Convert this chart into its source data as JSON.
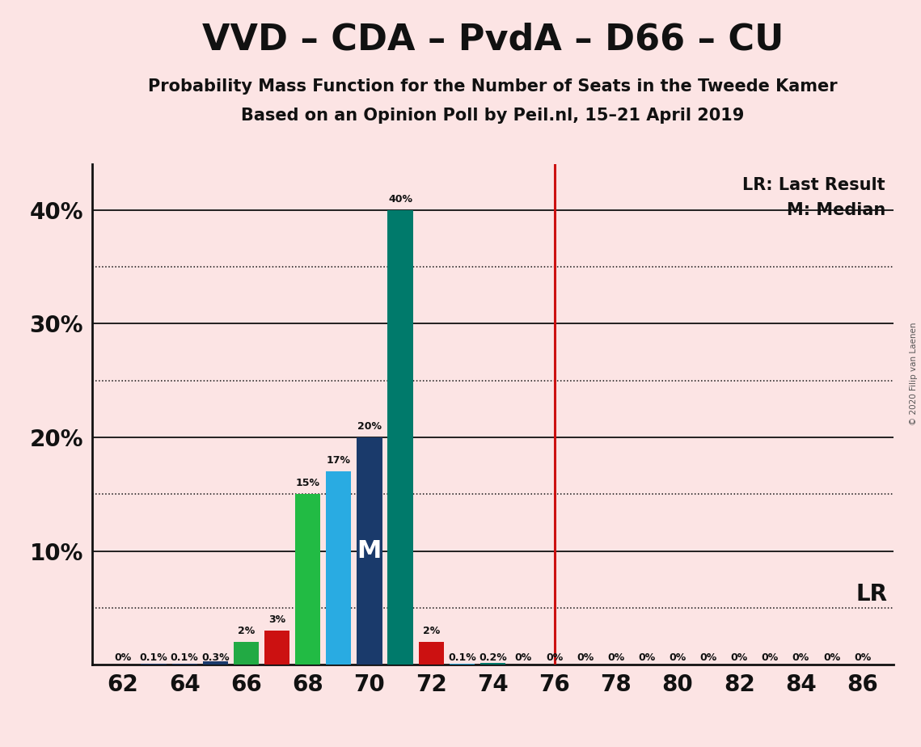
{
  "title": "VVD – CDA – PvdA – D66 – CU",
  "subtitle1": "Probability Mass Function for the Number of Seats in the Tweede Kamer",
  "subtitle2": "Based on an Opinion Poll by Peil.nl, 15–21 April 2019",
  "copyright": "© 2020 Filip van Laenen",
  "fig_bg": "#fce4e4",
  "bar_data": [
    {
      "seat": 62,
      "prob": 0.0,
      "color": "#1a3a6b",
      "label": "0%"
    },
    {
      "seat": 63,
      "prob": 0.1,
      "color": "#1a3a6b",
      "label": "0.1%"
    },
    {
      "seat": 64,
      "prob": 0.1,
      "color": "#1a3a6b",
      "label": "0.1%"
    },
    {
      "seat": 65,
      "prob": 0.3,
      "color": "#1a3a6b",
      "label": "0.3%"
    },
    {
      "seat": 66,
      "prob": 2.0,
      "color": "#22aa44",
      "label": "2%"
    },
    {
      "seat": 67,
      "prob": 3.0,
      "color": "#cc1111",
      "label": "3%"
    },
    {
      "seat": 68,
      "prob": 15.0,
      "color": "#22bb44",
      "label": "15%"
    },
    {
      "seat": 69,
      "prob": 17.0,
      "color": "#29abe2",
      "label": "17%"
    },
    {
      "seat": 70,
      "prob": 20.0,
      "color": "#1a3a6b",
      "label": "20%"
    },
    {
      "seat": 71,
      "prob": 40.0,
      "color": "#007a6b",
      "label": "40%"
    },
    {
      "seat": 72,
      "prob": 2.0,
      "color": "#cc1111",
      "label": "2%"
    },
    {
      "seat": 73,
      "prob": 0.1,
      "color": "#29abe2",
      "label": "0.1%"
    },
    {
      "seat": 74,
      "prob": 0.2,
      "color": "#007a6b",
      "label": "0.2%"
    },
    {
      "seat": 75,
      "prob": 0.0,
      "color": "#1a3a6b",
      "label": "0%"
    },
    {
      "seat": 76,
      "prob": 0.0,
      "color": "#1a3a6b",
      "label": "0%"
    },
    {
      "seat": 77,
      "prob": 0.0,
      "color": "#1a3a6b",
      "label": "0%"
    },
    {
      "seat": 78,
      "prob": 0.0,
      "color": "#1a3a6b",
      "label": "0%"
    },
    {
      "seat": 79,
      "prob": 0.0,
      "color": "#1a3a6b",
      "label": "0%"
    },
    {
      "seat": 80,
      "prob": 0.0,
      "color": "#1a3a6b",
      "label": "0%"
    },
    {
      "seat": 81,
      "prob": 0.0,
      "color": "#1a3a6b",
      "label": "0%"
    },
    {
      "seat": 82,
      "prob": 0.0,
      "color": "#1a3a6b",
      "label": "0%"
    },
    {
      "seat": 83,
      "prob": 0.0,
      "color": "#1a3a6b",
      "label": "0%"
    },
    {
      "seat": 84,
      "prob": 0.0,
      "color": "#1a3a6b",
      "label": "0%"
    },
    {
      "seat": 85,
      "prob": 0.0,
      "color": "#1a3a6b",
      "label": "0%"
    },
    {
      "seat": 86,
      "prob": 0.0,
      "color": "#1a3a6b",
      "label": "0%"
    }
  ],
  "median_seat": 70,
  "lr_seat": 76,
  "lr_line_color": "#cc1111",
  "lr_legend": "LR: Last Result",
  "m_legend": "M: Median",
  "median_label": "M",
  "median_label_color": "#ffffff",
  "ytick_major": [
    10,
    20,
    30,
    40
  ],
  "ytick_dotted": [
    5,
    15,
    25,
    35
  ],
  "lr_dotted_y": 5,
  "xlim": [
    61.0,
    87.0
  ],
  "ylim": [
    0,
    44
  ],
  "xtick_positions": [
    62,
    64,
    66,
    68,
    70,
    72,
    74,
    76,
    78,
    80,
    82,
    84,
    86
  ],
  "bar_width": 0.82,
  "title_fontsize": 32,
  "subtitle_fontsize": 15,
  "tick_fontsize": 20,
  "label_fontsize": 9,
  "legend_fontsize": 15
}
